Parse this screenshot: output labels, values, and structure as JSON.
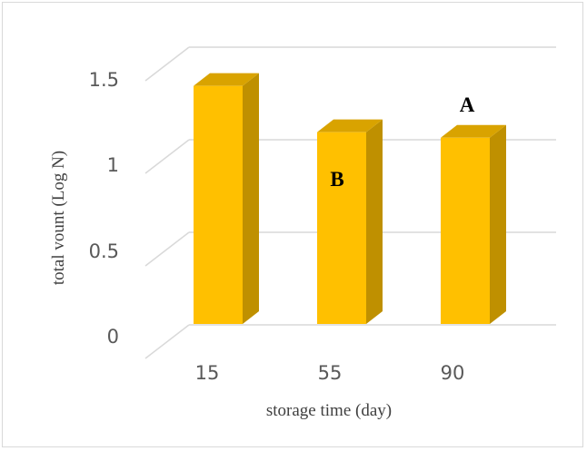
{
  "chart_data": {
    "type": "bar",
    "style": "3d-column",
    "categories": [
      "15",
      "55",
      "90"
    ],
    "values": [
      1.33,
      1.08,
      1.05
    ],
    "ylim": [
      0,
      1.5
    ],
    "yticks": [
      "0",
      "0.5",
      "1",
      "1.5"
    ],
    "xlabel": "storage time (day)",
    "ylabel": "total vount (Log N)",
    "annotations": [
      {
        "text": "A",
        "category": "90"
      },
      {
        "text": "B",
        "category": "55"
      }
    ],
    "grid": true,
    "legend": "none",
    "colors": {
      "bar_front": "#ffc000",
      "bar_side": "#bf9000",
      "bar_top": "#d9a300",
      "grid": "#d9d9d9"
    }
  }
}
